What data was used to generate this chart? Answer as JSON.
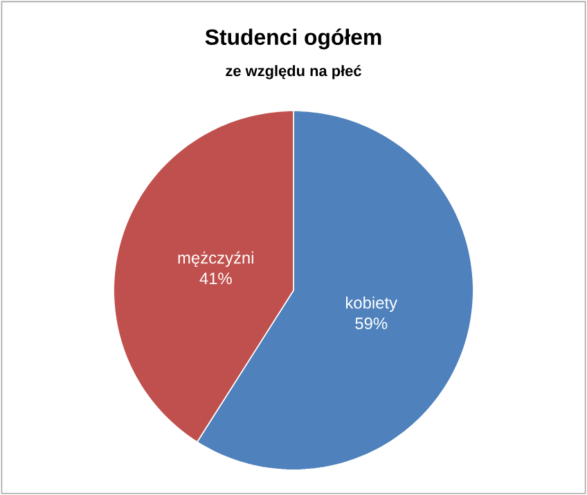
{
  "chart_data": {
    "type": "pie",
    "title": "Studenci ogółem",
    "subtitle": "ze względu na płeć",
    "categories": [
      "kobiety",
      "mężczyźni"
    ],
    "values": [
      59,
      41
    ],
    "value_labels": [
      "59%",
      "41%"
    ],
    "colors": [
      "#4f81bd",
      "#c0504d"
    ]
  }
}
